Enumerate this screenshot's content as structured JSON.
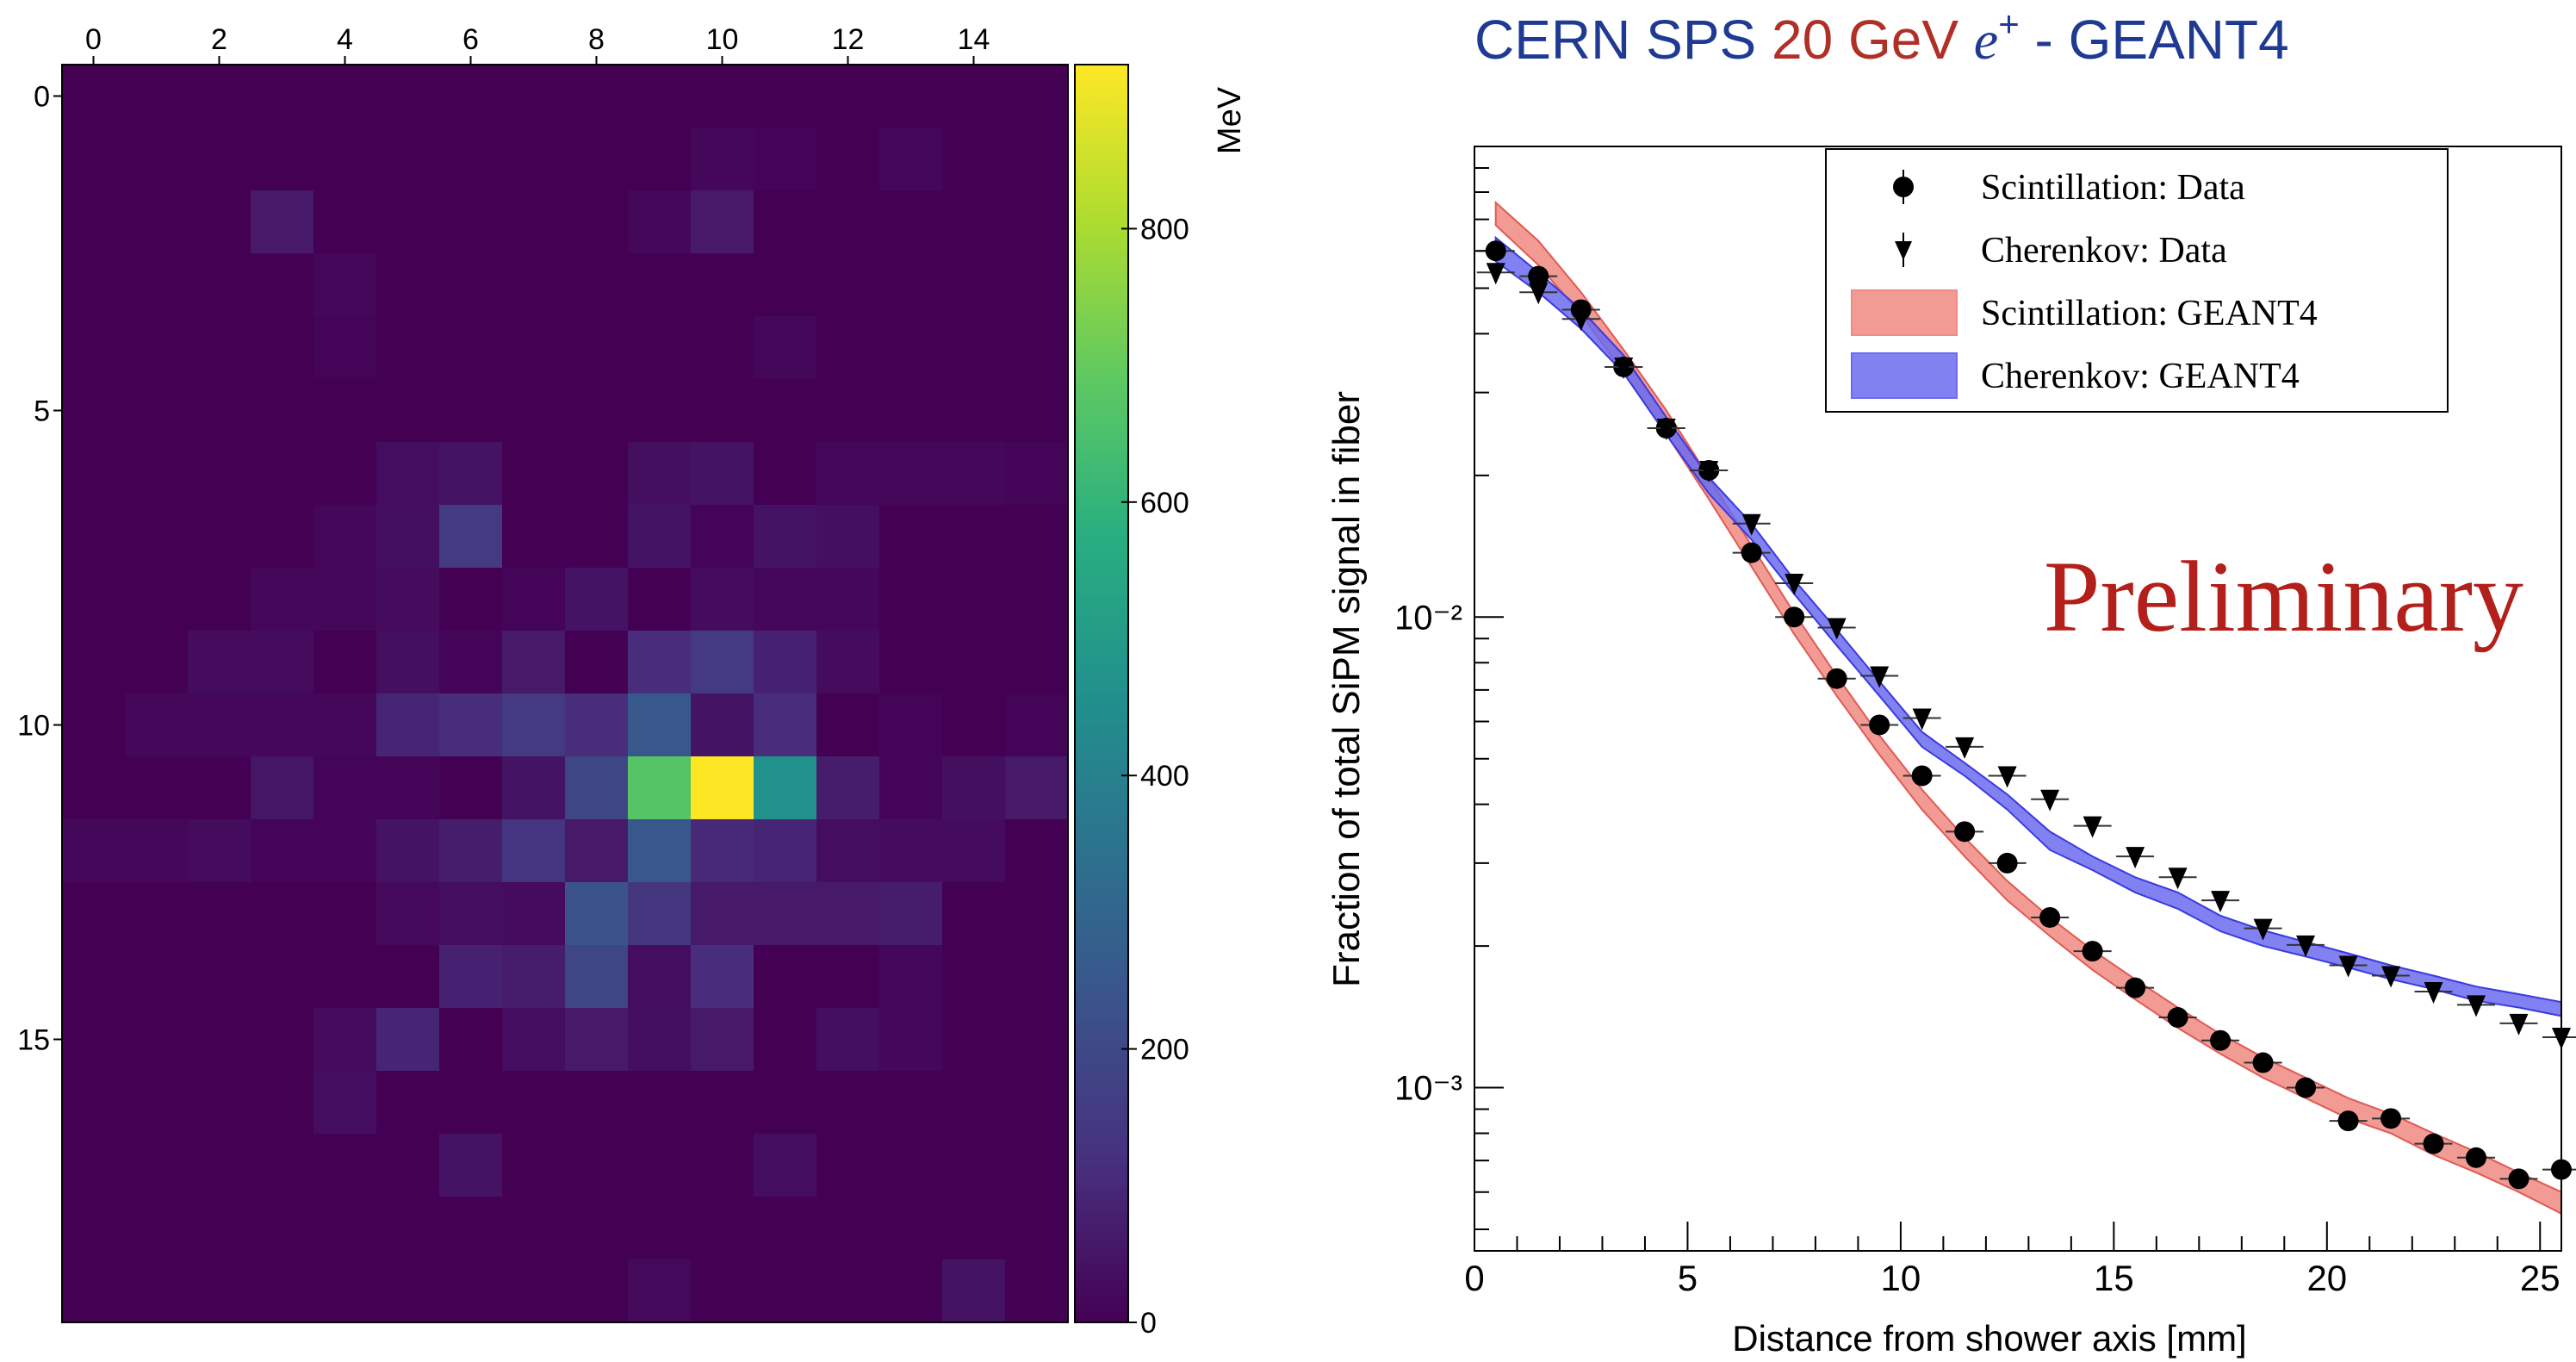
{
  "chart_data": [
    {
      "type": "heatmap",
      "colorbar_label": "MeV",
      "x_ticks": [
        "0",
        "2",
        "4",
        "6",
        "8",
        "10",
        "12",
        "14"
      ],
      "y_ticks": [
        "0",
        "5",
        "10",
        "15"
      ],
      "colorbar_ticks": [
        "0",
        "200",
        "400",
        "600",
        "800"
      ],
      "zlim": [
        0,
        920
      ],
      "colormap": [
        "#440154",
        "#472f7d",
        "#3b528b",
        "#2c728e",
        "#21918c",
        "#28ae80",
        "#5ec962",
        "#addc30",
        "#fde725"
      ],
      "n_cols": 16,
      "n_rows": 20,
      "values": [
        [
          0,
          0,
          0,
          0,
          0,
          0,
          0,
          0,
          0,
          0,
          0,
          0,
          0,
          0,
          0,
          0
        ],
        [
          0,
          0,
          0,
          0,
          0,
          0,
          0,
          0,
          0,
          0,
          15,
          10,
          0,
          15,
          0,
          0
        ],
        [
          0,
          0,
          0,
          60,
          0,
          0,
          0,
          0,
          0,
          15,
          60,
          0,
          0,
          0,
          0,
          0
        ],
        [
          0,
          0,
          0,
          0,
          15,
          0,
          0,
          0,
          0,
          0,
          0,
          0,
          0,
          0,
          0,
          0
        ],
        [
          0,
          0,
          0,
          0,
          10,
          0,
          0,
          0,
          0,
          0,
          0,
          15,
          0,
          0,
          0,
          0
        ],
        [
          0,
          0,
          0,
          0,
          0,
          0,
          0,
          0,
          0,
          0,
          0,
          0,
          0,
          0,
          0,
          0
        ],
        [
          0,
          0,
          0,
          0,
          0,
          30,
          45,
          0,
          0,
          35,
          45,
          0,
          15,
          15,
          15,
          10
        ],
        [
          0,
          0,
          0,
          0,
          15,
          35,
          150,
          0,
          0,
          45,
          10,
          45,
          35,
          0,
          0,
          0
        ],
        [
          0,
          0,
          0,
          15,
          15,
          25,
          0,
          10,
          45,
          0,
          25,
          15,
          15,
          0,
          0,
          0
        ],
        [
          0,
          0,
          25,
          25,
          0,
          35,
          10,
          60,
          0,
          110,
          150,
          80,
          25,
          0,
          0,
          0
        ],
        [
          0,
          15,
          15,
          15,
          15,
          90,
          110,
          150,
          110,
          250,
          45,
          110,
          0,
          10,
          0,
          10
        ],
        [
          0,
          0,
          0,
          50,
          10,
          10,
          0,
          45,
          190,
          670,
          920,
          460,
          70,
          10,
          35,
          60
        ],
        [
          15,
          15,
          25,
          10,
          10,
          45,
          70,
          130,
          60,
          250,
          100,
          90,
          30,
          25,
          25,
          0
        ],
        [
          0,
          0,
          0,
          0,
          0,
          20,
          30,
          25,
          230,
          140,
          60,
          60,
          60,
          70,
          0,
          0
        ],
        [
          0,
          0,
          0,
          0,
          0,
          0,
          80,
          70,
          190,
          30,
          110,
          0,
          0,
          15,
          0,
          0
        ],
        [
          0,
          0,
          0,
          0,
          25,
          90,
          0,
          30,
          60,
          35,
          60,
          0,
          35,
          15,
          0,
          0
        ],
        [
          0,
          0,
          0,
          0,
          30,
          0,
          0,
          0,
          0,
          0,
          0,
          0,
          0,
          0,
          0,
          0
        ],
        [
          0,
          0,
          0,
          0,
          0,
          0,
          45,
          0,
          0,
          0,
          0,
          30,
          0,
          0,
          0,
          0
        ],
        [
          0,
          0,
          0,
          0,
          0,
          0,
          0,
          0,
          0,
          0,
          0,
          0,
          0,
          0,
          0,
          0
        ],
        [
          0,
          0,
          0,
          0,
          0,
          0,
          0,
          0,
          0,
          20,
          0,
          0,
          0,
          0,
          45,
          0
        ]
      ]
    },
    {
      "type": "line",
      "title": {
        "part1": "CERN SPS ",
        "part2": "20 GeV ",
        "part3": "e",
        "part3_sup": "+",
        "part4": " - GEANT4",
        "color1": "#1f3a93",
        "color2": "#b03028"
      },
      "xlabel": "Distance from shower axis [mm]",
      "ylabel": "Fraction of total SiPM signal in fiber",
      "xlim": [
        0,
        25.5
      ],
      "ylim": [
        0.00045,
        0.1
      ],
      "yscale": "log",
      "x_ticks": [
        "0",
        "5",
        "10",
        "15",
        "20",
        "25"
      ],
      "y_ticks": [
        "10⁻²",
        "10⁻³"
      ],
      "annotation": "Preliminary",
      "annotation_color": "#b3201b",
      "legend_position": "top-right",
      "legend": [
        {
          "label": "Scintillation: Data",
          "marker": "circle"
        },
        {
          "label": "Cherenkov: Data",
          "marker": "triangle-down"
        },
        {
          "label": "Scintillation: GEANT4",
          "marker": "band",
          "color": "#f08a82"
        },
        {
          "label": "Cherenkov: GEANT4",
          "marker": "band",
          "color": "#6b6bf0"
        }
      ],
      "series": [
        {
          "name": "Scintillation: Data",
          "x": [
            0.5,
            1.5,
            2.5,
            3.5,
            4.5,
            5.5,
            6.5,
            7.5,
            8.5,
            9.5,
            10.5,
            11.5,
            12.5,
            13.5,
            14.5,
            15.5,
            16.5,
            17.5,
            18.5,
            19.5,
            20.5,
            21.5,
            22.5,
            23.5,
            24.5,
            25.5
          ],
          "y": [
            0.06,
            0.053,
            0.045,
            0.034,
            0.0252,
            0.0205,
            0.0137,
            0.01,
            0.0074,
            0.0059,
            0.0046,
            0.0035,
            0.003,
            0.0023,
            0.00195,
            0.00163,
            0.00141,
            0.00126,
            0.00113,
            0.001,
            0.00085,
            0.00086,
            0.00076,
            0.00071,
            0.00064,
            0.00067
          ]
        },
        {
          "name": "Cherenkov: Data",
          "x": [
            0.5,
            1.5,
            2.5,
            3.5,
            4.5,
            5.5,
            6.5,
            7.5,
            8.5,
            9.5,
            10.5,
            11.5,
            12.5,
            13.5,
            14.5,
            15.5,
            16.5,
            17.5,
            18.5,
            19.5,
            20.5,
            21.5,
            22.5,
            23.5,
            24.5,
            25.5
          ],
          "y": [
            0.054,
            0.049,
            0.043,
            0.034,
            0.0252,
            0.0205,
            0.0158,
            0.0118,
            0.0095,
            0.0075,
            0.0061,
            0.0053,
            0.0046,
            0.0041,
            0.0036,
            0.0031,
            0.0028,
            0.0025,
            0.00218,
            0.00201,
            0.00182,
            0.00173,
            0.0016,
            0.0015,
            0.00137,
            0.00128
          ]
        },
        {
          "name": "Scintillation: GEANT4",
          "x": [
            0.5,
            1.5,
            2.5,
            3.5,
            4.5,
            5.5,
            6.5,
            7.5,
            8.5,
            9.5,
            10.5,
            11.5,
            12.5,
            13.5,
            14.5,
            15.5,
            16.5,
            17.5,
            18.5,
            19.5,
            20.5,
            21.5,
            22.5,
            23.5,
            24.5,
            25.5
          ],
          "y_low": [
            0.068,
            0.056,
            0.044,
            0.033,
            0.0245,
            0.0178,
            0.0128,
            0.0092,
            0.0068,
            0.0051,
            0.0039,
            0.0031,
            0.0025,
            0.0021,
            0.00178,
            0.00154,
            0.00134,
            0.00118,
            0.00105,
            0.00095,
            0.00086,
            0.0008,
            0.00072,
            0.00066,
            0.0006,
            0.00054
          ],
          "y_high": [
            0.076,
            0.063,
            0.049,
            0.037,
            0.0275,
            0.0198,
            0.0142,
            0.0102,
            0.0075,
            0.0056,
            0.0043,
            0.0034,
            0.00275,
            0.0023,
            0.00196,
            0.0017,
            0.00148,
            0.0013,
            0.00116,
            0.00105,
            0.00095,
            0.00088,
            0.0008,
            0.00073,
            0.00066,
            0.0006
          ]
        },
        {
          "name": "Cherenkov: GEANT4",
          "x": [
            0.5,
            1.5,
            2.5,
            3.5,
            4.5,
            5.5,
            6.5,
            7.5,
            8.5,
            9.5,
            10.5,
            11.5,
            12.5,
            13.5,
            14.5,
            15.5,
            16.5,
            17.5,
            18.5,
            19.5,
            20.5,
            21.5,
            22.5,
            23.5,
            24.5,
            25.5
          ],
          "y_low": [
            0.057,
            0.049,
            0.041,
            0.033,
            0.0244,
            0.0183,
            0.0146,
            0.0112,
            0.0087,
            0.0068,
            0.0053,
            0.0046,
            0.0039,
            0.0032,
            0.0029,
            0.0026,
            0.0024,
            0.00215,
            0.002,
            0.0019,
            0.0018,
            0.0017,
            0.00162,
            0.00153,
            0.00148,
            0.00142
          ],
          "y_high": [
            0.064,
            0.054,
            0.045,
            0.036,
            0.0266,
            0.0198,
            0.0158,
            0.012,
            0.0094,
            0.0073,
            0.0057,
            0.0049,
            0.0042,
            0.0035,
            0.0031,
            0.0028,
            0.0026,
            0.00232,
            0.00216,
            0.00204,
            0.00193,
            0.00182,
            0.00173,
            0.00164,
            0.00158,
            0.00152
          ]
        }
      ]
    }
  ]
}
